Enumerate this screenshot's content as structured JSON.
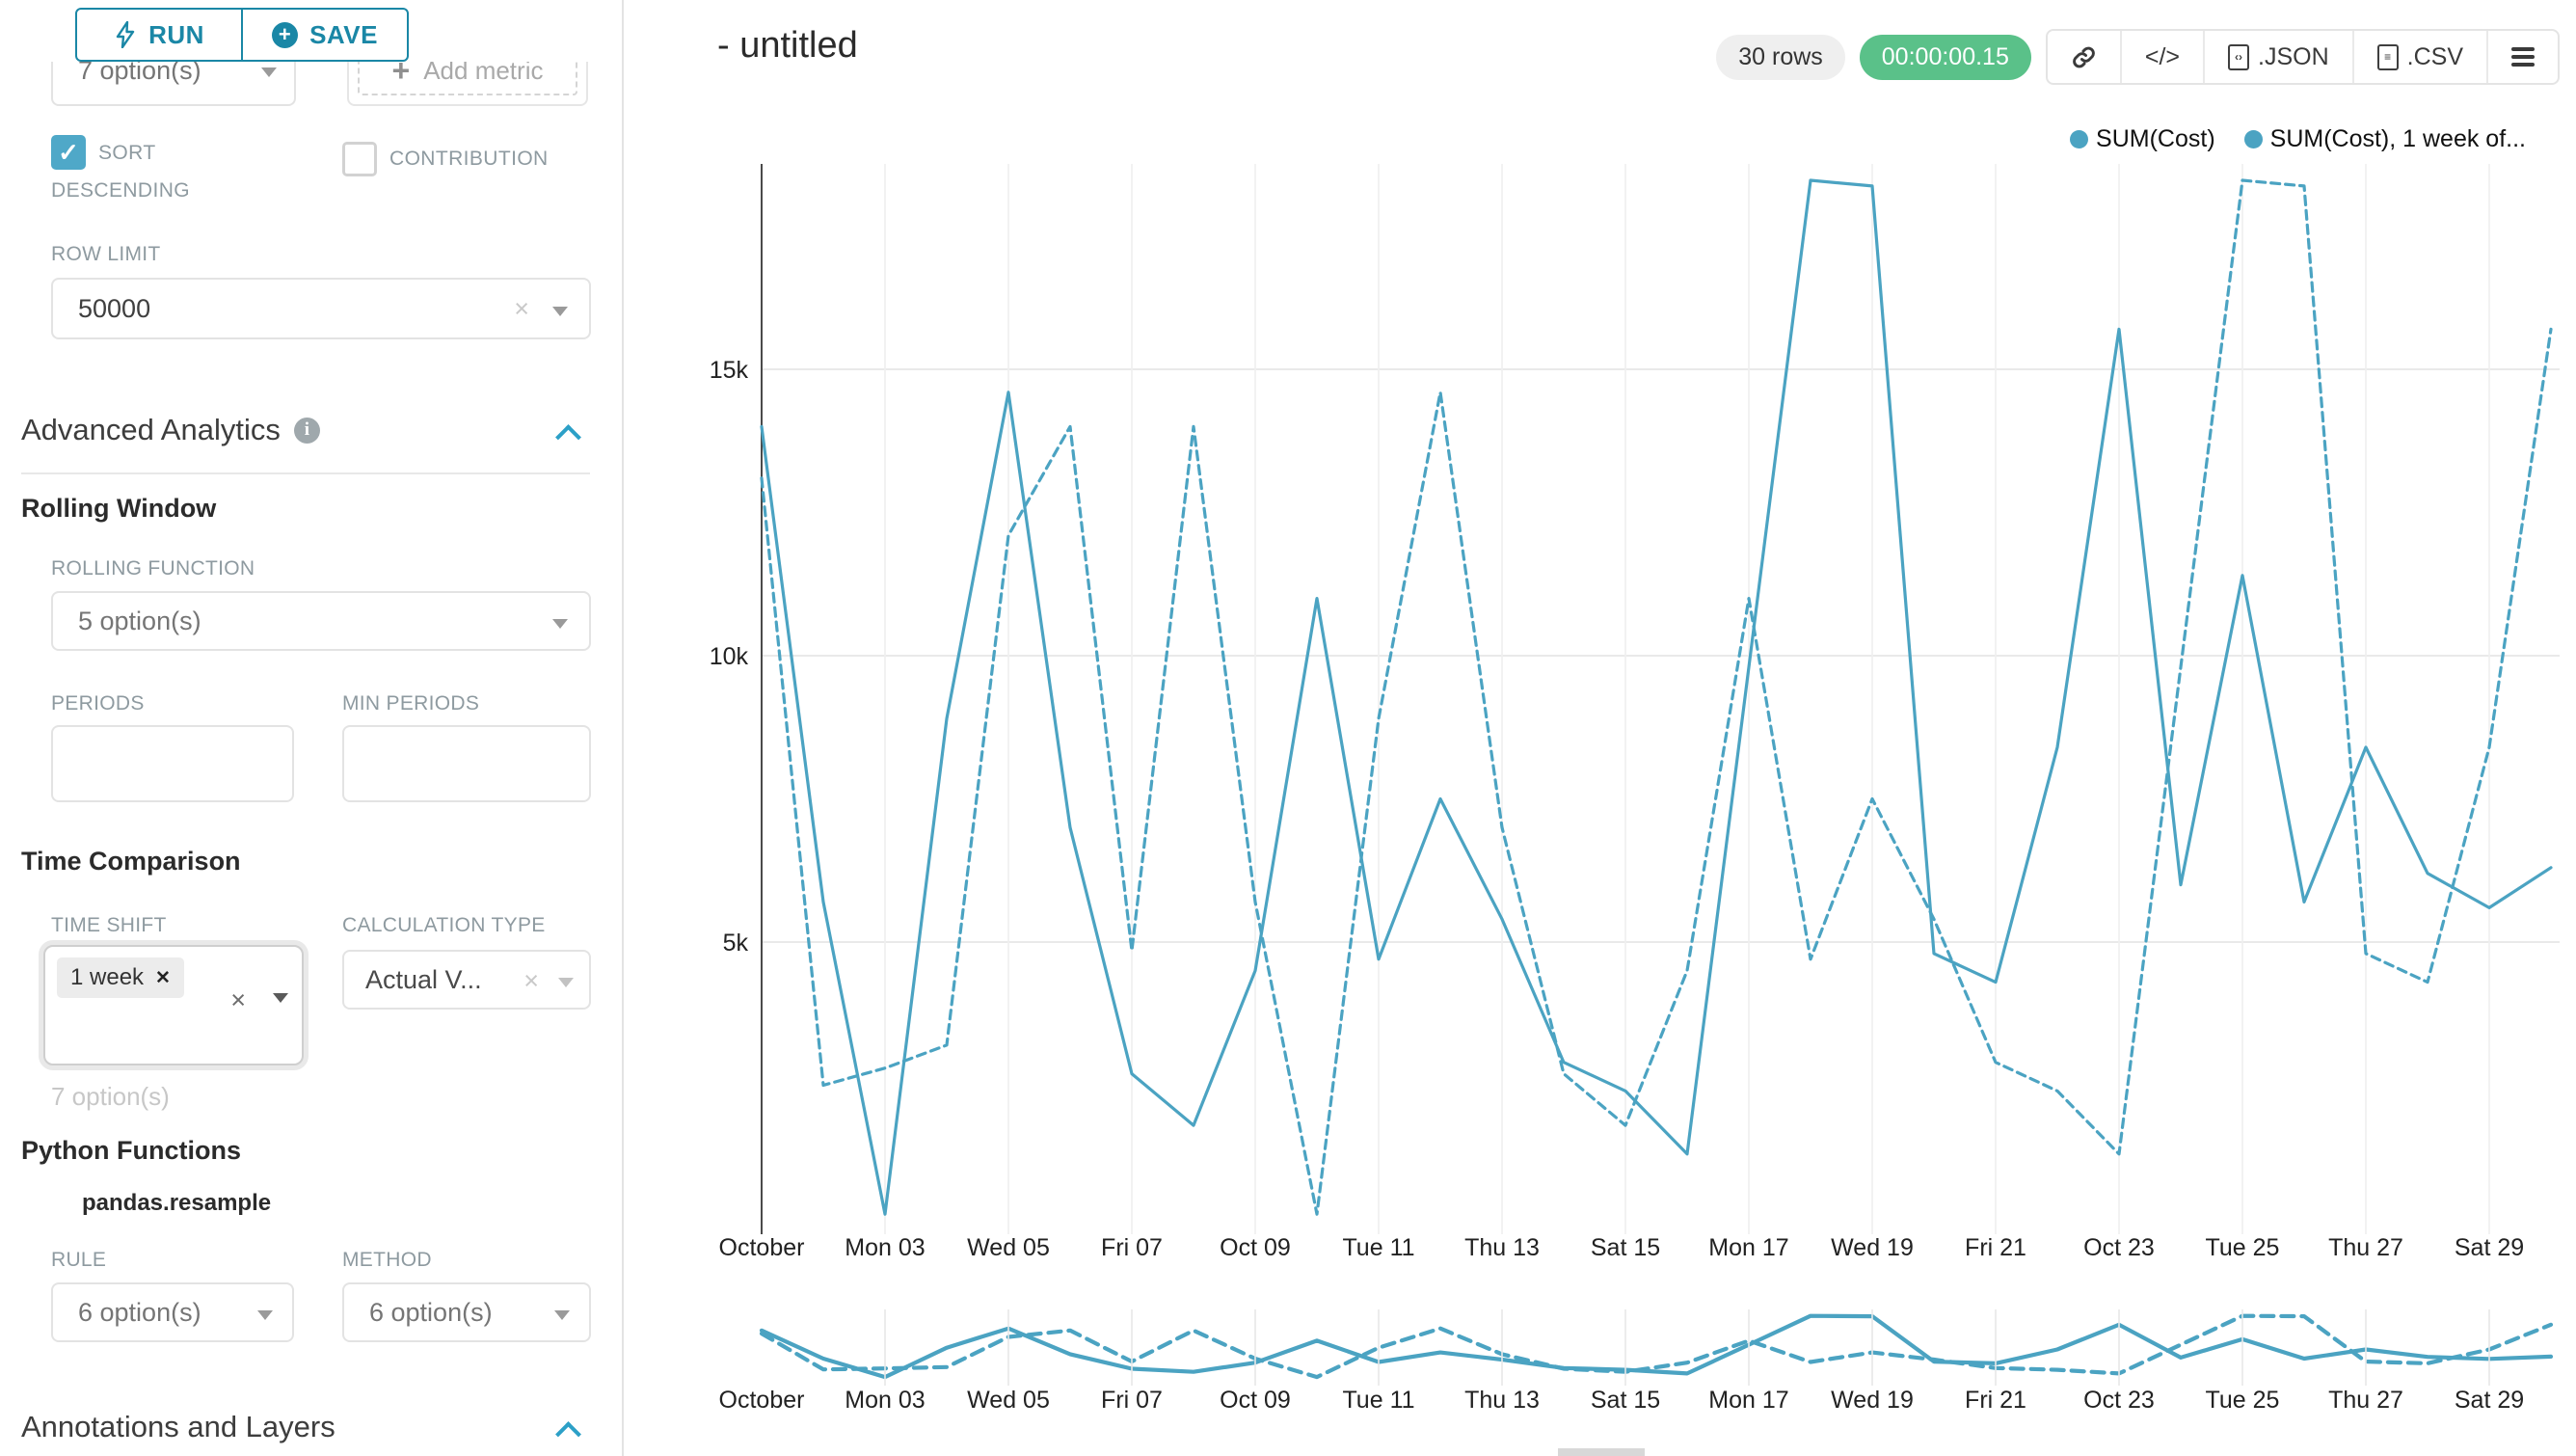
{
  "sidebar": {
    "run_label": "RUN",
    "save_label": "SAVE",
    "groupby_select_value": "7 option(s)",
    "add_metric_label": "Add metric",
    "sort_descending_label": "SORT DESCENDING",
    "contribution_label": "CONTRIBUTION",
    "row_limit_label": "ROW LIMIT",
    "row_limit_value": "50000",
    "advanced_analytics_title": "Advanced Analytics",
    "rolling_window_title": "Rolling Window",
    "rolling_function_label": "ROLLING FUNCTION",
    "rolling_function_value": "5 option(s)",
    "periods_label": "PERIODS",
    "min_periods_label": "MIN PERIODS",
    "time_comparison_title": "Time Comparison",
    "time_shift_label": "TIME SHIFT",
    "time_shift_tag": "1 week",
    "time_shift_helper": "7 option(s)",
    "calculation_type_label": "CALCULATION TYPE",
    "calculation_type_value": "Actual V...",
    "python_functions_title": "Python Functions",
    "pandas_resample_label": "pandas.resample",
    "rule_label": "RULE",
    "rule_value": "6 option(s)",
    "method_label": "METHOD",
    "method_value": "6 option(s)",
    "annotations_title": "Annotations and Layers"
  },
  "header": {
    "title": "- untitled",
    "rows_badge": "30 rows",
    "timer_badge": "00:00:00.15",
    "code_button_label": "</>",
    "export_json_label": ".JSON",
    "export_csv_label": ".CSV"
  },
  "icons": {
    "run": "lightning-bolt-icon",
    "save": "plus-circle-icon",
    "info": "info-icon",
    "collapse": "chevron-up-icon",
    "share": "link-icon",
    "code": "code-icon",
    "menu": "hamburger-icon",
    "file": "file-icon"
  },
  "colors": {
    "accent_teal": "#1a87a6",
    "checkbox_teal": "#4fa8c8",
    "chevron_teal": "#2ca0c7",
    "timer_green": "#5ac189",
    "line_teal": "#4ba3c2"
  },
  "chart_data": {
    "type": "line",
    "title": "- untitled",
    "x_days": 30,
    "x_tick_labels": [
      "October",
      "Mon 03",
      "Wed 05",
      "Fri 07",
      "Oct 09",
      "Tue 11",
      "Thu 13",
      "Sat 15",
      "Mon 17",
      "Wed 19",
      "Fri 21",
      "Oct 23",
      "Tue 25",
      "Thu 27",
      "Sat 29"
    ],
    "ytick_labels": [
      "5k",
      "10k",
      "15k"
    ],
    "ytick_values": [
      5000,
      10000,
      15000
    ],
    "ylim": [
      0,
      18600
    ],
    "grid": true,
    "legend_position": "top-right",
    "color": "#4ba3c2",
    "legend": [
      "SUM(Cost)",
      "SUM(Cost), 1 week of..."
    ],
    "series": [
      {
        "name": "SUM(Cost)",
        "style": "solid",
        "values": [
          14000,
          5700,
          250,
          8900,
          14600,
          7000,
          2700,
          1800,
          4500,
          11000,
          4700,
          7500,
          5400,
          2900,
          2400,
          1300,
          9800,
          18300,
          18200,
          4800,
          4300,
          8400,
          15700,
          6000,
          11400,
          5700,
          8400,
          6200,
          5600,
          6300
        ]
      },
      {
        "name": "SUM(Cost), 1 week offset",
        "style": "dashed",
        "values": [
          13100,
          2500,
          2800,
          3200,
          12100,
          14000,
          4850,
          14000,
          5700,
          250,
          8900,
          14600,
          7000,
          2700,
          1800,
          4500,
          11000,
          4700,
          7500,
          5400,
          2900,
          2400,
          1300,
          9800,
          18300,
          18200,
          4800,
          4300,
          8400,
          15700
        ]
      }
    ],
    "has_mini_chart": true
  }
}
